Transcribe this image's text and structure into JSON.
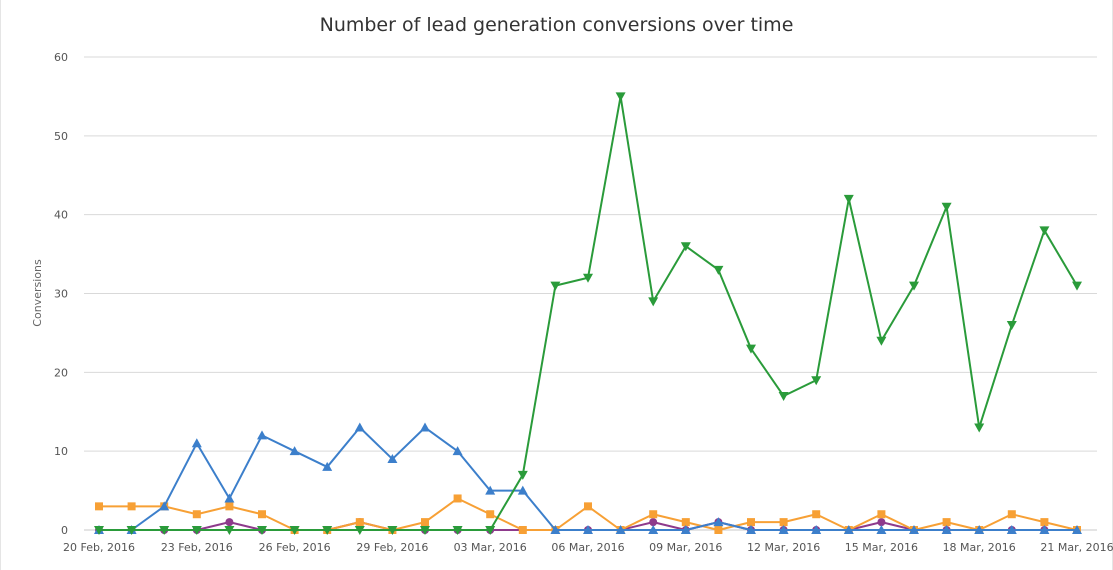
{
  "chart_data": {
    "type": "line",
    "title": "Number of lead generation conversions over time",
    "ylabel": "Conversions",
    "xlabel": "",
    "ylim": [
      0,
      60
    ],
    "yticks": [
      0,
      10,
      20,
      30,
      40,
      50,
      60
    ],
    "x": [
      "20 Feb, 2016",
      "21 Feb, 2016",
      "22 Feb, 2016",
      "23 Feb, 2016",
      "24 Feb, 2016",
      "25 Feb, 2016",
      "26 Feb, 2016",
      "27 Feb, 2016",
      "28 Feb, 2016",
      "29 Feb, 2016",
      "01 Mar, 2016",
      "02 Mar, 2016",
      "03 Mar, 2016",
      "04 Mar, 2016",
      "05 Mar, 2016",
      "06 Mar, 2016",
      "07 Mar, 2016",
      "08 Mar, 2016",
      "09 Mar, 2016",
      "10 Mar, 2016",
      "11 Mar, 2016",
      "12 Mar, 2016",
      "13 Mar, 2016",
      "14 Mar, 2016",
      "15 Mar, 2016",
      "16 Mar, 2016",
      "17 Mar, 2016",
      "18 Mar, 2016",
      "19 Mar, 2016",
      "20 Mar, 2016",
      "21 Mar, 2016"
    ],
    "xtick_labels": [
      "20 Feb, 2016",
      "23 Feb, 2016",
      "26 Feb, 2016",
      "29 Feb, 2016",
      "03 Mar, 2016",
      "06 Mar, 2016",
      "09 Mar, 2016",
      "12 Mar, 2016",
      "15 Mar, 2016",
      "18 Mar, 2016",
      "21 Mar, 2016"
    ],
    "grid": true,
    "legend": "none",
    "series": [
      {
        "color": "#f7a035",
        "marker": "square",
        "values": [
          3,
          3,
          3,
          2,
          3,
          2,
          0,
          0,
          1,
          0,
          1,
          4,
          2,
          0,
          0,
          3,
          0,
          2,
          1,
          0,
          1,
          1,
          2,
          0,
          2,
          0,
          1,
          0,
          2,
          1,
          0
        ]
      },
      {
        "color": "#8e3a8c",
        "marker": "circle",
        "values": [
          0,
          0,
          0,
          0,
          1,
          0,
          0,
          0,
          1,
          0,
          0,
          0,
          0,
          0,
          0,
          0,
          0,
          1,
          0,
          1,
          0,
          0,
          0,
          0,
          1,
          0,
          0,
          0,
          0,
          0,
          0
        ]
      },
      {
        "color": "#3c7fcb",
        "marker": "triangle-up",
        "values": [
          0,
          0,
          3,
          11,
          4,
          12,
          10,
          8,
          13,
          9,
          13,
          10,
          5,
          5,
          0,
          0,
          0,
          0,
          0,
          1,
          0,
          0,
          0,
          0,
          0,
          0,
          0,
          0,
          0,
          0,
          0
        ]
      },
      {
        "color": "#2a9b3a",
        "marker": "triangle-down",
        "values": [
          0,
          0,
          0,
          0,
          0,
          0,
          0,
          0,
          0,
          0,
          0,
          0,
          0,
          7,
          31,
          32,
          55,
          29,
          36,
          33,
          23,
          17,
          19,
          42,
          24,
          31,
          41,
          13,
          26,
          38,
          31
        ]
      }
    ]
  }
}
